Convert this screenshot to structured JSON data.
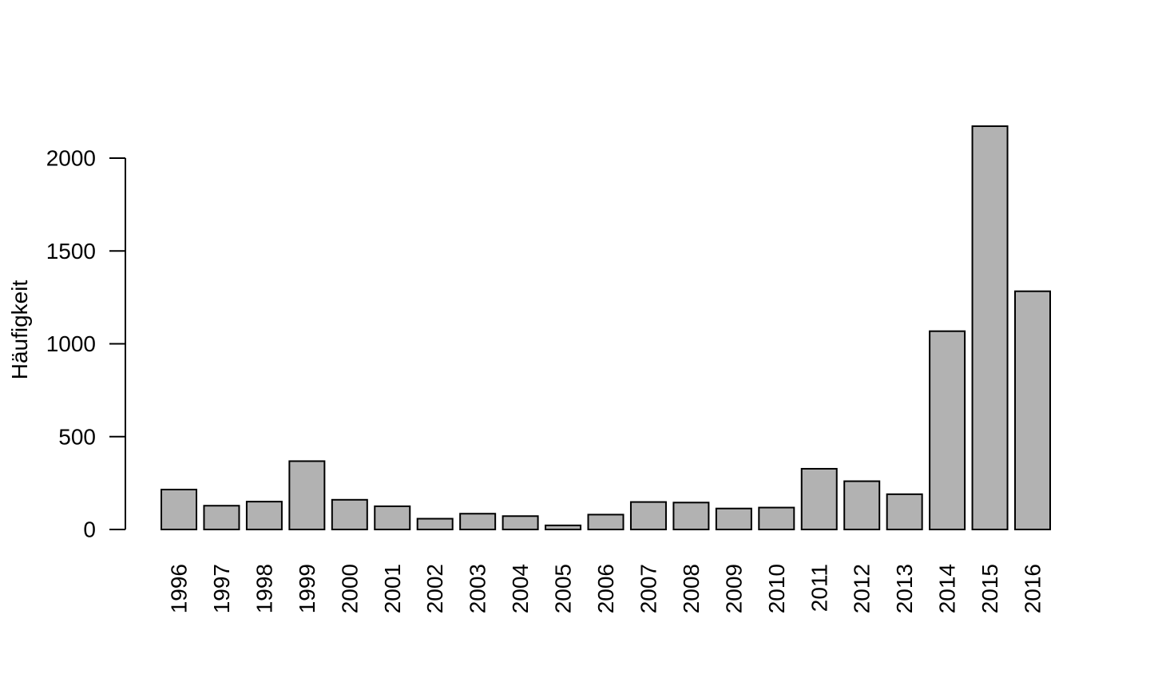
{
  "chart_data": {
    "type": "bar",
    "title": "",
    "xlabel": "",
    "ylabel": "Häufigkeit",
    "categories": [
      "1996",
      "1997",
      "1998",
      "1999",
      "2000",
      "2001",
      "2002",
      "2003",
      "2004",
      "2005",
      "2006",
      "2007",
      "2008",
      "2009",
      "2010",
      "2011",
      "2012",
      "2013",
      "2014",
      "2015",
      "2016"
    ],
    "values": [
      215,
      128,
      150,
      368,
      160,
      125,
      58,
      85,
      72,
      22,
      80,
      148,
      145,
      113,
      118,
      327,
      260,
      190,
      1068,
      2172,
      1283
    ],
    "yticks": [
      0,
      500,
      1000,
      1500,
      2000
    ],
    "ylim": [
      0,
      2172
    ],
    "bar_color": "#b2b2b2",
    "grid": false,
    "legend": "none"
  }
}
